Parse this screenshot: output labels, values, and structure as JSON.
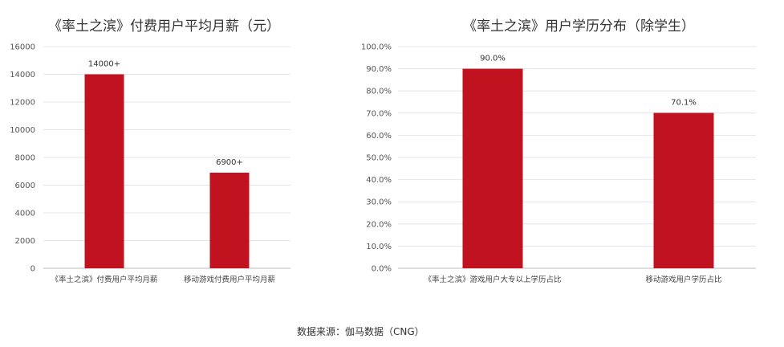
{
  "chart_data": [
    {
      "type": "bar",
      "title": "《率土之滨》付费用户平均月薪（元）",
      "categories": [
        "《率土之滨》付费用户平均月薪",
        "移动游戏付费用户平均月薪"
      ],
      "values": [
        14000,
        6900
      ],
      "data_labels": [
        "14000+",
        "6900+"
      ],
      "ylim": [
        0,
        16000
      ],
      "yticks": [
        "0",
        "2000",
        "4000",
        "6000",
        "8000",
        "10000",
        "12000",
        "14000",
        "16000"
      ],
      "grid": true,
      "color": "#c1121f"
    },
    {
      "type": "bar",
      "title": "《率土之滨》用户学历分布（除学生）",
      "categories": [
        "《率土之滨》游戏用户大专以上学历占比",
        "移动游戏用户学历占比"
      ],
      "values": [
        90.0,
        70.1
      ],
      "data_labels": [
        "90.0%",
        "70.1%"
      ],
      "ylim": [
        0,
        100
      ],
      "yticks": [
        "0.0%",
        "10.0%",
        "20.0%",
        "30.0%",
        "40.0%",
        "50.0%",
        "60.0%",
        "70.0%",
        "80.0%",
        "90.0%",
        "100.0%"
      ],
      "grid": true,
      "color": "#c1121f"
    }
  ],
  "source": "数据来源：伽马数据（CNG）"
}
